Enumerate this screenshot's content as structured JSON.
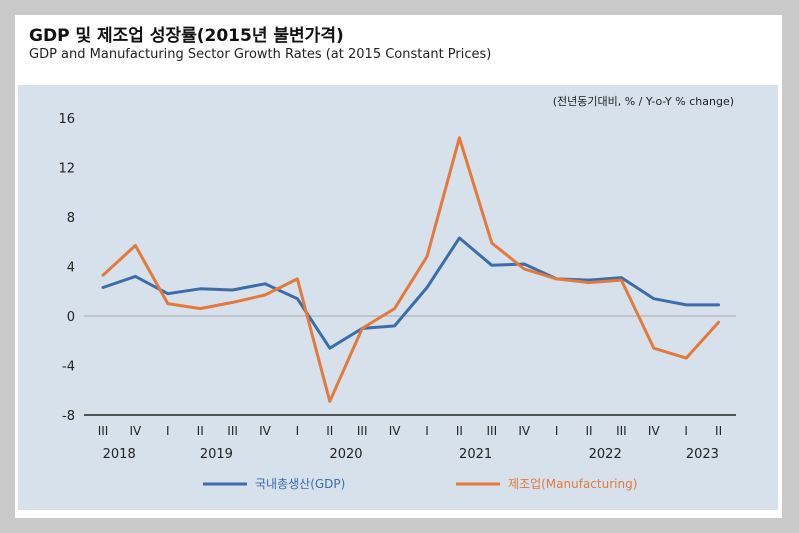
{
  "header": {
    "title_ko": "GDP 및 제조업 성장률(2015년 불변가격)",
    "title_en": "GDP and Manufacturing Sector Growth Rates (at 2015 Constant Prices)"
  },
  "chart_data": {
    "type": "line",
    "unit_label": "(전년동기대비, % / Y-o-Y % change)",
    "ylim": [
      -8,
      16
    ],
    "y_ticks": [
      16,
      12,
      8,
      4,
      0,
      -4,
      -8
    ],
    "quarters": [
      "III",
      "IV",
      "I",
      "II",
      "III",
      "IV",
      "I",
      "II",
      "III",
      "IV",
      "I",
      "II",
      "III",
      "IV",
      "I",
      "II",
      "III",
      "IV",
      "I",
      "II"
    ],
    "years": [
      {
        "label": "2018",
        "index": 0.5
      },
      {
        "label": "2019",
        "index": 3.5
      },
      {
        "label": "2020",
        "index": 7.5
      },
      {
        "label": "2021",
        "index": 11.5
      },
      {
        "label": "2022",
        "index": 15.5
      },
      {
        "label": "2023",
        "index": 18.5
      }
    ],
    "series": [
      {
        "name": "국내총생산(GDP)",
        "color": "#3d6da8",
        "values": [
          2.3,
          3.2,
          1.8,
          2.2,
          2.1,
          2.6,
          1.4,
          -2.6,
          -1.0,
          -0.8,
          2.3,
          6.3,
          4.1,
          4.2,
          3.0,
          2.9,
          3.1,
          1.4,
          0.9,
          0.9
        ]
      },
      {
        "name": "제조업(Manufacturing)",
        "color": "#e37a3c",
        "values": [
          3.3,
          5.7,
          1.0,
          0.6,
          1.1,
          1.7,
          3.0,
          -6.9,
          -1.0,
          0.6,
          4.8,
          14.4,
          5.9,
          3.8,
          3.0,
          2.7,
          2.9,
          -2.6,
          -3.4,
          -0.5
        ]
      }
    ],
    "legend_position": "bottom",
    "grid": false
  }
}
